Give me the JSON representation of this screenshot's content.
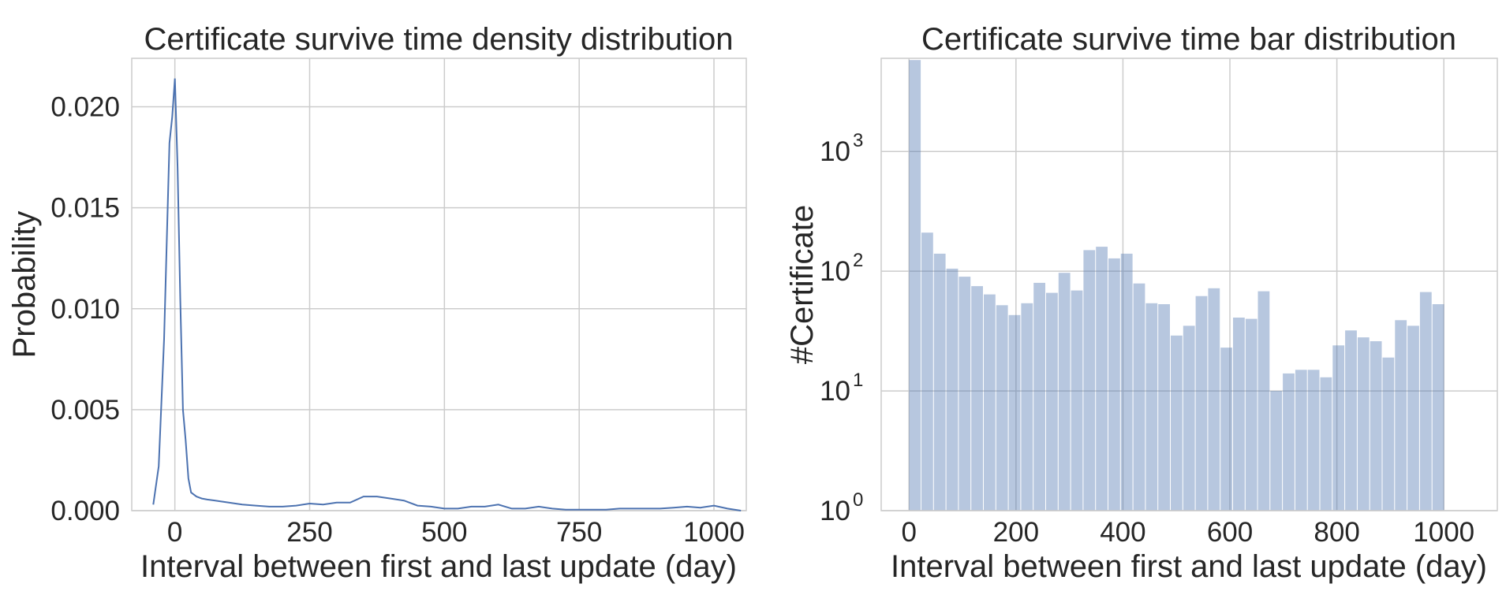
{
  "chart_data": [
    {
      "type": "line",
      "title": "Certificate survive time density distribution",
      "xlabel": "Interval between first and last update (day)",
      "ylabel": "Probability",
      "xlim": [
        -80,
        1060
      ],
      "ylim": [
        0,
        0.0224
      ],
      "xticks": [
        0,
        250,
        500,
        750,
        1000
      ],
      "xtick_labels": [
        "0",
        "250",
        "500",
        "750",
        "1000"
      ],
      "yticks": [
        0,
        0.005,
        0.01,
        0.015,
        0.02
      ],
      "ytick_labels": [
        "0.000",
        "0.005",
        "0.010",
        "0.015",
        "0.020"
      ],
      "grid": true,
      "series": [
        {
          "color": "#4c72b0",
          "x": [
            -40,
            -30,
            -20,
            -10,
            -5,
            0,
            5,
            10,
            15,
            20,
            25,
            30,
            40,
            50,
            60,
            75,
            100,
            125,
            150,
            175,
            200,
            225,
            250,
            275,
            300,
            325,
            350,
            375,
            400,
            425,
            450,
            475,
            500,
            525,
            550,
            575,
            600,
            625,
            650,
            675,
            700,
            725,
            750,
            775,
            800,
            825,
            850,
            875,
            900,
            925,
            950,
            975,
            1000,
            1025,
            1050
          ],
          "y": [
            0.0003,
            0.0022,
            0.0085,
            0.0182,
            0.0195,
            0.0214,
            0.017,
            0.0105,
            0.005,
            0.0035,
            0.0016,
            0.0009,
            0.0007,
            0.0006,
            0.00055,
            0.0005,
            0.0004,
            0.0003,
            0.00025,
            0.0002,
            0.0002,
            0.00025,
            0.00035,
            0.0003,
            0.0004,
            0.0004,
            0.0007,
            0.0007,
            0.0006,
            0.0005,
            0.00025,
            0.0002,
            0.0001,
            0.0001,
            0.0002,
            0.0002,
            0.0003,
            0.0001,
            0.0001,
            0.0002,
            0.0001,
            5e-05,
            5e-05,
            5e-05,
            5e-05,
            0.0001,
            0.0001,
            0.0001,
            0.0001,
            0.00015,
            0.0002,
            0.00015,
            0.00025,
            0.0001,
            0.0
          ]
        }
      ]
    },
    {
      "type": "bar",
      "title": "Certificate survive time bar distribution",
      "xlabel": "Interval between first and last update (day)",
      "ylabel": "#Certificate",
      "yscale": "log",
      "xlim": [
        -52,
        1100
      ],
      "ylim": [
        1,
        6000
      ],
      "xticks": [
        0,
        200,
        400,
        600,
        800,
        1000
      ],
      "xtick_labels": [
        "0",
        "200",
        "400",
        "600",
        "800",
        "1000"
      ],
      "yticks": [
        1,
        10,
        100,
        1000
      ],
      "ytick_labels": [
        {
          "base": "10",
          "exp": "0"
        },
        {
          "base": "10",
          "exp": "1"
        },
        {
          "base": "10",
          "exp": "2"
        },
        {
          "base": "10",
          "exp": "3"
        }
      ],
      "grid": true,
      "bar_color": "#4c72b0",
      "bar_alpha": 0.4,
      "bin_width": 23.3,
      "bin_start": 0,
      "values": [
        5800,
        210,
        140,
        105,
        90,
        75,
        64,
        52,
        43,
        54,
        80,
        66,
        97,
        69,
        150,
        160,
        128,
        140,
        79,
        54,
        53,
        29,
        35,
        62,
        72,
        23,
        41,
        40,
        68,
        10,
        14,
        15,
        15,
        13,
        24,
        32,
        28,
        26,
        19,
        39,
        35,
        67,
        53
      ]
    }
  ]
}
